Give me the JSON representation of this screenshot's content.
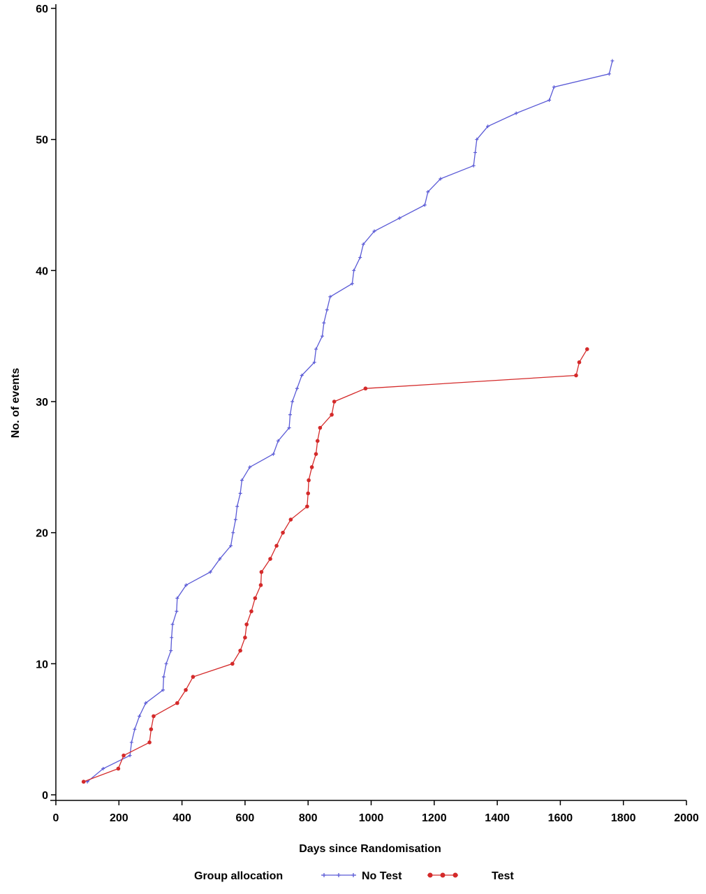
{
  "chart_data": {
    "type": "line",
    "title": "",
    "xlabel": "Days since Randomisation",
    "ylabel": "No. of events",
    "xlim": [
      0,
      2000
    ],
    "ylim": [
      0,
      60
    ],
    "x_ticks": [
      0,
      200,
      400,
      600,
      800,
      1000,
      1200,
      1400,
      1600,
      1800,
      2000
    ],
    "y_ticks": [
      0,
      10,
      20,
      30,
      40,
      50,
      60
    ],
    "grid": false,
    "legend": {
      "title": "Group allocation",
      "placement": "bottom"
    },
    "series": [
      {
        "name": "No Test",
        "color": "#5a5ad6",
        "marker": "plus",
        "points": [
          [
            100,
            1
          ],
          [
            150,
            2
          ],
          [
            235,
            3
          ],
          [
            240,
            4
          ],
          [
            250,
            5
          ],
          [
            265,
            6
          ],
          [
            285,
            7
          ],
          [
            340,
            8
          ],
          [
            342,
            9
          ],
          [
            350,
            10
          ],
          [
            365,
            11
          ],
          [
            367,
            12
          ],
          [
            370,
            13
          ],
          [
            383,
            14
          ],
          [
            385,
            15
          ],
          [
            413,
            16
          ],
          [
            490,
            17
          ],
          [
            520,
            18
          ],
          [
            555,
            19
          ],
          [
            562,
            20
          ],
          [
            570,
            21
          ],
          [
            575,
            22
          ],
          [
            585,
            23
          ],
          [
            590,
            24
          ],
          [
            615,
            25
          ],
          [
            690,
            26
          ],
          [
            705,
            27
          ],
          [
            740,
            28
          ],
          [
            743,
            29
          ],
          [
            750,
            30
          ],
          [
            765,
            31
          ],
          [
            780,
            32
          ],
          [
            820,
            33
          ],
          [
            825,
            34
          ],
          [
            845,
            35
          ],
          [
            850,
            36
          ],
          [
            860,
            37
          ],
          [
            870,
            38
          ],
          [
            940,
            39
          ],
          [
            945,
            40
          ],
          [
            965,
            41
          ],
          [
            975,
            42
          ],
          [
            1010,
            43
          ],
          [
            1090,
            44
          ],
          [
            1170,
            45
          ],
          [
            1180,
            46
          ],
          [
            1220,
            47
          ],
          [
            1325,
            48
          ],
          [
            1330,
            49
          ],
          [
            1335,
            50
          ],
          [
            1370,
            51
          ],
          [
            1460,
            52
          ],
          [
            1565,
            53
          ],
          [
            1580,
            54
          ],
          [
            1755,
            55
          ],
          [
            1765,
            56
          ]
        ]
      },
      {
        "name": "Test",
        "color": "#d42a2a",
        "marker": "dot",
        "points": [
          [
            88,
            1
          ],
          [
            198,
            2
          ],
          [
            215,
            3
          ],
          [
            297,
            4
          ],
          [
            302,
            5
          ],
          [
            310,
            6
          ],
          [
            385,
            7
          ],
          [
            412,
            8
          ],
          [
            435,
            9
          ],
          [
            560,
            10
          ],
          [
            585,
            11
          ],
          [
            600,
            12
          ],
          [
            605,
            13
          ],
          [
            620,
            14
          ],
          [
            632,
            15
          ],
          [
            650,
            16
          ],
          [
            652,
            17
          ],
          [
            680,
            18
          ],
          [
            700,
            19
          ],
          [
            720,
            20
          ],
          [
            745,
            21
          ],
          [
            797,
            22
          ],
          [
            800,
            23
          ],
          [
            802,
            24
          ],
          [
            812,
            25
          ],
          [
            825,
            26
          ],
          [
            830,
            27
          ],
          [
            838,
            28
          ],
          [
            875,
            29
          ],
          [
            883,
            30
          ],
          [
            982,
            31
          ],
          [
            1650,
            32
          ],
          [
            1660,
            33
          ],
          [
            1685,
            34
          ]
        ]
      }
    ]
  }
}
